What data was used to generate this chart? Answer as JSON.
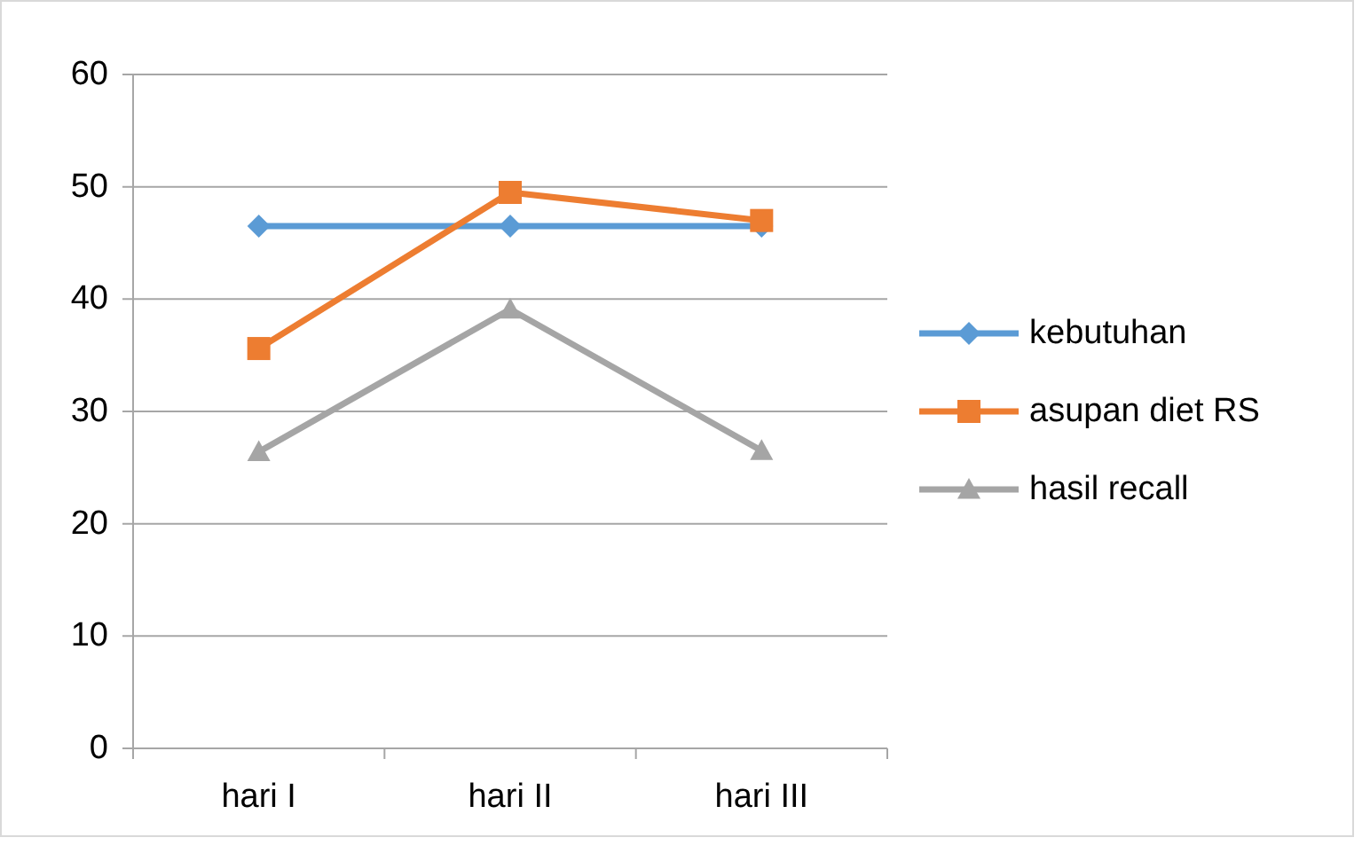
{
  "chart_data": {
    "type": "line",
    "categories": [
      "hari I",
      "hari II",
      "hari III"
    ],
    "series": [
      {
        "name": "kebutuhan",
        "color": "#5b9bd5",
        "marker": "diamond",
        "values": [
          46.5,
          46.5,
          46.5
        ]
      },
      {
        "name": "asupan diet RS",
        "color": "#ed7d31",
        "marker": "square",
        "values": [
          35.6,
          49.5,
          47.0
        ]
      },
      {
        "name": "hasil recall",
        "color": "#a5a5a5",
        "marker": "triangle",
        "values": [
          26.4,
          39.1,
          26.5
        ]
      }
    ],
    "ylim": [
      0,
      60
    ],
    "yticks": [
      0,
      10,
      20,
      30,
      40,
      50,
      60
    ],
    "grid": "y",
    "legend": "right"
  }
}
